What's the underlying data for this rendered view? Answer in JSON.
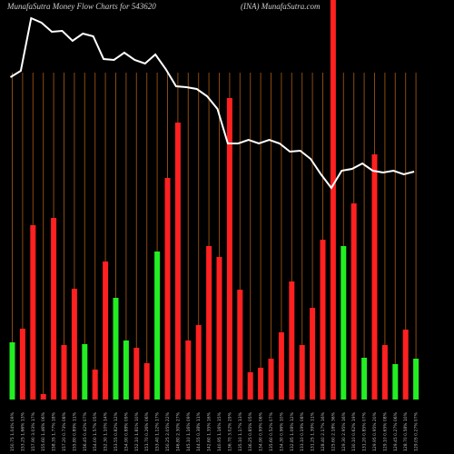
{
  "chart_data": {
    "type": "bar-line",
    "title": "MunafaSutra  Money Flow  Charts for 543620",
    "subtitle": "(INA) MunafaSutra.com",
    "categories": [
      "150.75 1.04% 09%",
      "153.25 1.66% 13%",
      "157.90 3.03% 17%",
      "155.60 1.46% 06%",
      "158.35 1.77% 18%",
      "157.20 0.73% 08%",
      "155.80 0.89% 11%",
      "156.45 0.42% 07%",
      "154.00 1.57% 05%",
      "152.30 1.10% 14%",
      "153.55 0.82% 12%",
      "154.90 0.88% 09%",
      "152.10 1.81% 10%",
      "151.70 0.26% 06%",
      "153.40 1.12% 17%",
      "150.25 2.05% 22%",
      "146.80 2.30% 27%",
      "145.10 1.16% 09%",
      "144.55 0.38% 11%",
      "142.60 1.35% 16%",
      "140.95 1.16% 15%",
      "136.70 3.02% 29%",
      "135.10 1.17% 13%",
      "136.25 0.85% 05%",
      "134.90 0.99% 06%",
      "135.60 0.52% 07%",
      "134.30 0.96% 10%",
      "132.85 1.08% 12%",
      "133.10 0.19% 08%",
      "131.25 1.39% 11%",
      "128.40 2.17% 16%",
      "125.60 2.18% 36%",
      "129.30 2.95% 16%",
      "130.10 0.62% 19%",
      "131.20 0.85% 07%",
      "129.95 0.95% 20%",
      "129.10 0.65% 08%",
      "129.45 0.27% 06%",
      "128.70 0.58% 10%",
      "129.05 0.27% 07%"
    ],
    "values": [
      63,
      78,
      192,
      6,
      200,
      60,
      122,
      61,
      33,
      152,
      112,
      65,
      57,
      40,
      163,
      244,
      305,
      65,
      82,
      169,
      157,
      332,
      121,
      30,
      35,
      45,
      74,
      130,
      60,
      101,
      176,
      440,
      169,
      216,
      46,
      270,
      60,
      39,
      77,
      45
    ],
    "colors": [
      "#22ee22",
      "#ff2020",
      "#ff2020",
      "#ff2020",
      "#ff2020",
      "#ff2020",
      "#ff2020",
      "#22ee22",
      "#ff2020",
      "#ff2020",
      "#22ee22",
      "#22ee22",
      "#ff2020",
      "#ff2020",
      "#22ee22",
      "#ff2020",
      "#ff2020",
      "#ff2020",
      "#ff2020",
      "#ff2020",
      "#ff2020",
      "#ff2020",
      "#ff2020",
      "#ff2020",
      "#ff2020",
      "#ff2020",
      "#ff2020",
      "#ff2020",
      "#ff2020",
      "#ff2020",
      "#ff2020",
      "#ff2020",
      "#22ee22",
      "#ff2020",
      "#22ee22",
      "#ff2020",
      "#ff2020",
      "#22ee22",
      "#ff2020",
      "#22ee22"
    ],
    "line": {
      "color": "#ffffff",
      "values": [
        355,
        362,
        420,
        415,
        405,
        406,
        395,
        403,
        400,
        375,
        374,
        382,
        374,
        370,
        380,
        364,
        345,
        344,
        342,
        334,
        320,
        282,
        282,
        286,
        282,
        286,
        282,
        273,
        274,
        265,
        248,
        233,
        252,
        254,
        260,
        252,
        250,
        252,
        248,
        251
      ]
    },
    "grid_color": "#8a4a10"
  }
}
